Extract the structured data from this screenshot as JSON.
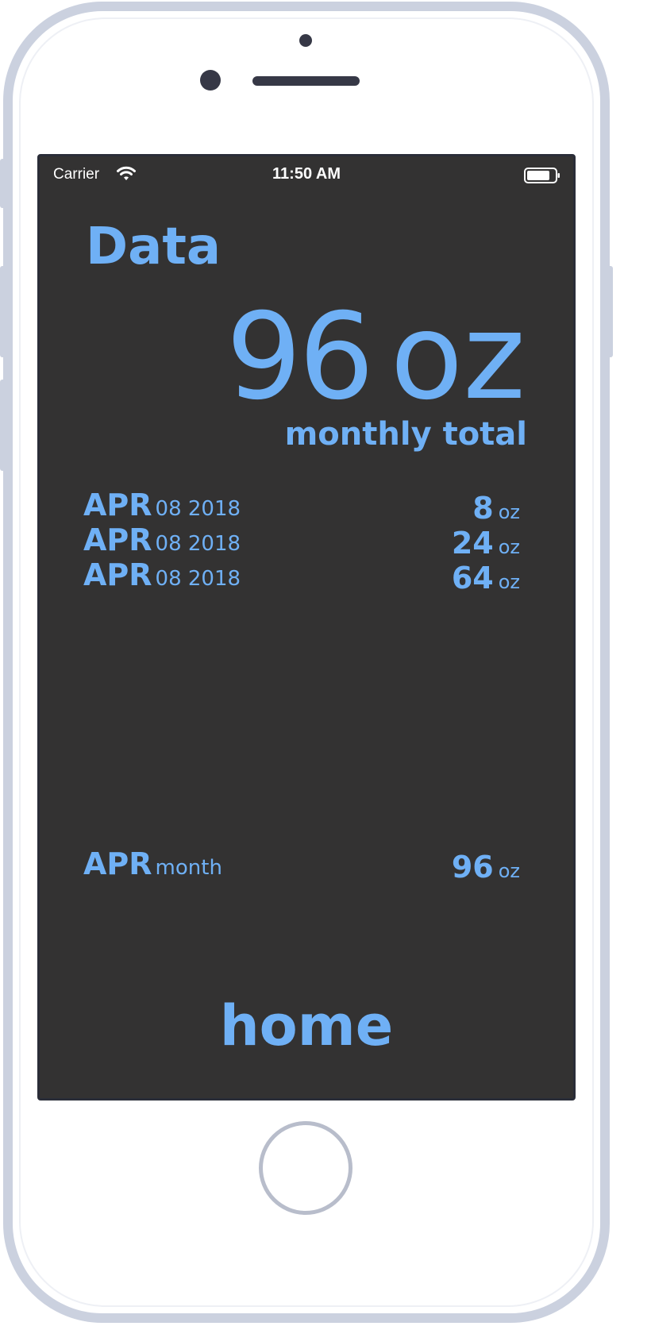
{
  "status_bar": {
    "carrier": "Carrier",
    "time": "11:50 AM",
    "wifi_icon": "wifi-icon",
    "battery_icon": "battery-icon"
  },
  "colors": {
    "accent": "#6fb0f5",
    "screen_background": "#333232",
    "frame": "#cbd1df"
  },
  "title": "Data",
  "total": {
    "value": "96",
    "unit": "oz",
    "caption": "monthly total"
  },
  "entries": [
    {
      "month": "APR",
      "day_year": "08 2018",
      "amount": "8",
      "unit": "oz"
    },
    {
      "month": "APR",
      "day_year": "08 2018",
      "amount": "24",
      "unit": "oz"
    },
    {
      "month": "APR",
      "day_year": "08 2018",
      "amount": "64",
      "unit": "oz"
    }
  ],
  "month_summary": {
    "month": "APR",
    "label": "month",
    "amount": "96",
    "unit": "oz"
  },
  "nav": {
    "home_label": "home"
  }
}
